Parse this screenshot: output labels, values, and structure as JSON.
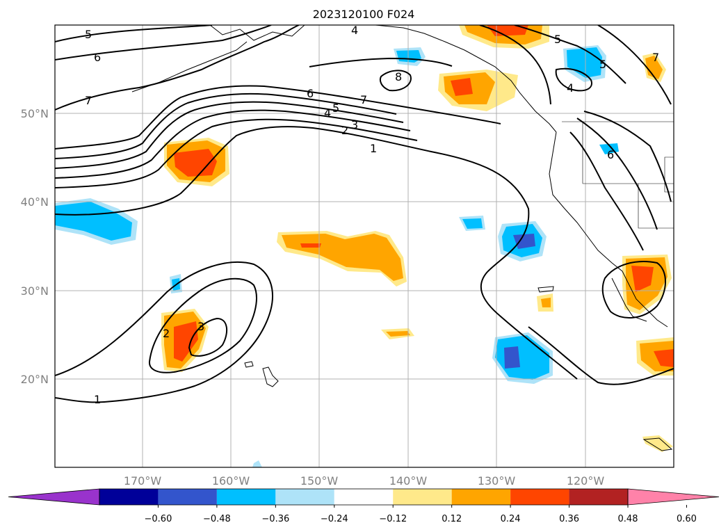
{
  "title": "2023120100 F024",
  "lat_labels": [
    "50°N",
    "40°N",
    "30°N",
    "20°N"
  ],
  "lon_labels": [
    "170°W",
    "160°W",
    "150°W",
    "140°W",
    "130°W",
    "120°W"
  ],
  "colorbar": {
    "colors": [
      "#9933cc",
      "#000099",
      "#3355cc",
      "#00bfff",
      "#aee3f8",
      "#ffffff",
      "#ffe98a",
      "#ffa500",
      "#ff4500",
      "#b22222",
      "#ff82a9"
    ],
    "tick_labels": [
      "−0.60",
      "−0.48",
      "−0.36",
      "−0.24",
      "−0.12",
      "0.12",
      "0.24",
      "0.36",
      "0.48",
      "0.60"
    ]
  },
  "contour_labels": [
    "5",
    "6",
    "7",
    "4",
    "8",
    "7",
    "6",
    "5",
    "4",
    "3",
    "2",
    "1",
    "5",
    "4",
    "5",
    "7",
    "6",
    "2",
    "3",
    "1"
  ],
  "map": {
    "land_color": "#ffffff",
    "ocean_color": "#ffffff",
    "projection": "PlateCarree",
    "extent_lon": [
      -180,
      -110
    ],
    "extent_lat": [
      10,
      60
    ]
  }
}
